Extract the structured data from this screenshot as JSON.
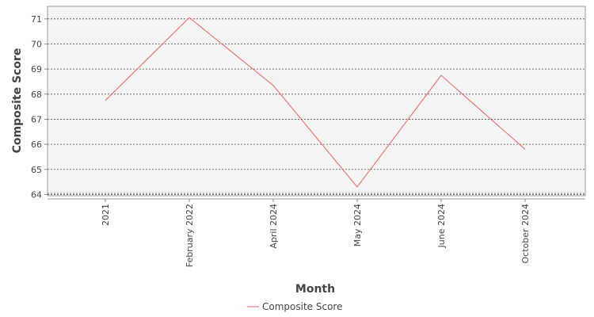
{
  "chart_data": {
    "type": "line",
    "title": "",
    "xlabel": "Month",
    "ylabel": "Composite Score",
    "categories": [
      "2021",
      "February 2022",
      "April 2024",
      "May 2024",
      "June 2024",
      "October 2024"
    ],
    "series": [
      {
        "name": "Composite Score",
        "values": [
          67.75,
          71.05,
          68.35,
          64.3,
          68.75,
          65.8
        ],
        "color": "#f06060"
      }
    ],
    "ylim": [
      63.95,
      71.5
    ],
    "yticks": [
      64,
      65,
      66,
      67,
      68,
      69,
      70,
      71
    ],
    "grid": true,
    "legend_placement": "bottom-center"
  }
}
